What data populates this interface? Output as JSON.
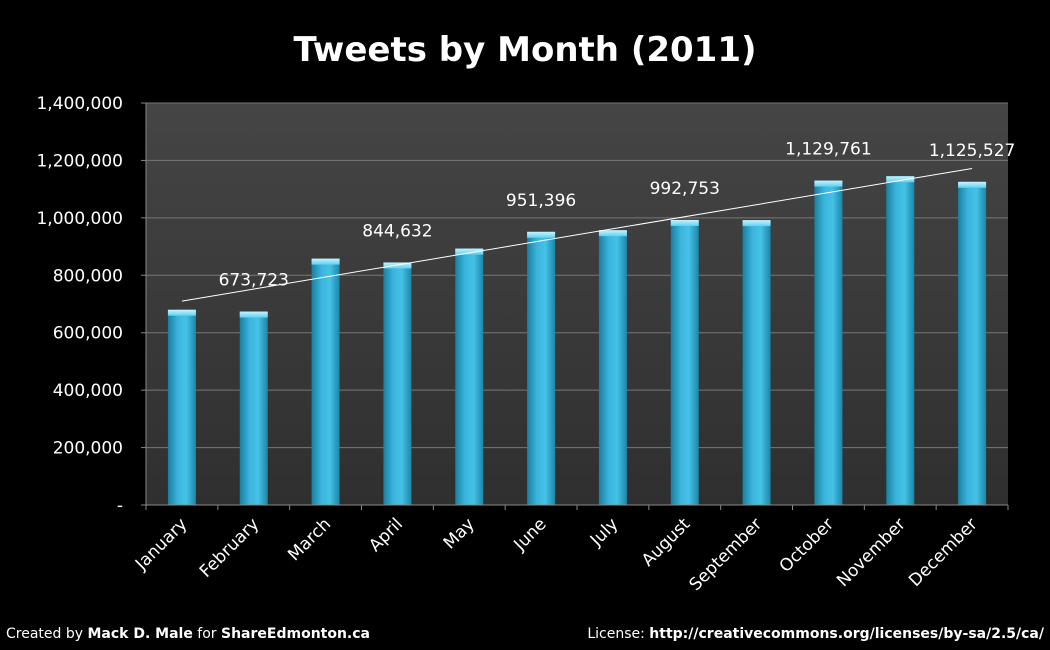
{
  "chart_data": {
    "type": "bar",
    "title": "Tweets by Month (2011)",
    "categories": [
      "January",
      "February",
      "March",
      "April",
      "May",
      "June",
      "July",
      "August",
      "September",
      "October",
      "November",
      "December"
    ],
    "values": [
      680000,
      673723,
      858000,
      844632,
      893000,
      951396,
      957000,
      992753,
      992000,
      1129761,
      1145000,
      1125527
    ],
    "data_labels": [
      {
        "index": 1,
        "text": "673,723"
      },
      {
        "index": 3,
        "text": "844,632"
      },
      {
        "index": 5,
        "text": "951,396"
      },
      {
        "index": 7,
        "text": "992,753"
      },
      {
        "index": 9,
        "text": "1,129,761"
      },
      {
        "index": 11,
        "text": "1,125,527"
      }
    ],
    "ylim": [
      0,
      1400000
    ],
    "yticks": [
      0,
      200000,
      400000,
      600000,
      800000,
      1000000,
      1200000,
      1400000
    ],
    "ytick_labels": [
      "-",
      "200,000",
      "400,000",
      "600,000",
      "800,000",
      "1,000,000",
      "1,200,000",
      "1,400,000"
    ],
    "trendline": {
      "type": "linear",
      "start_value": 710000,
      "end_value": 1172000
    },
    "grid": true,
    "legend": "none",
    "xlabel": "",
    "ylabel": ""
  },
  "colors": {
    "background": "#000000",
    "plot_area": "#3b3b3b",
    "bar": "#3bb4dc",
    "bar_dark": "#1a7fa0",
    "bar_light": "#8fe2f6",
    "grid": "#777777",
    "trendline": "#ffffff",
    "text": "#ffffff"
  },
  "footer": {
    "left_prefix": "Created by ",
    "left_author": "Mack D. Male",
    "left_mid": " for ",
    "left_site": "ShareEdmonton.ca",
    "right_prefix": "License: ",
    "right_url": "http://creativecommons.org/licenses/by-sa/2.5/ca/"
  }
}
